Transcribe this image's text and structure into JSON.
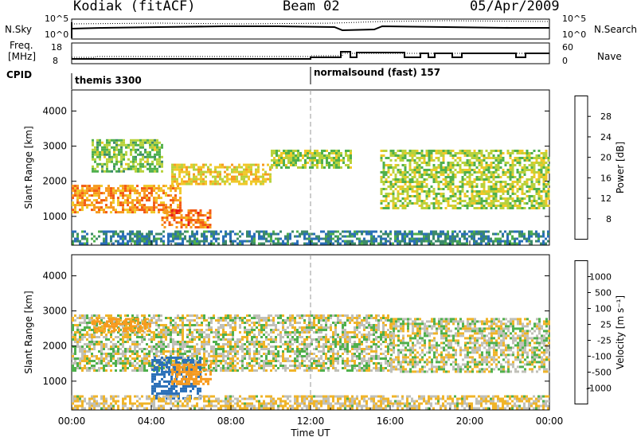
{
  "header": {
    "station": "Kodiak (fitACF)",
    "beam": "Beam 02",
    "date": "05/Apr/2009"
  },
  "panels": {
    "sky": {
      "left_label": "N.Sky",
      "right_label": "N.Search",
      "left_ticks": [
        "10^5",
        "10^0"
      ],
      "right_ticks": [
        "10^5",
        "10^0"
      ]
    },
    "freq": {
      "left_label_1": "Freq.",
      "left_label_2": "[MHz]",
      "right_label": "Nave",
      "left_ticks": [
        "18",
        "8"
      ],
      "right_ticks": [
        "60",
        "0"
      ]
    },
    "cpid": {
      "label": "CPID",
      "mode_1": "themis 3300",
      "mode_2": "normalsound (fast) 157"
    }
  },
  "colors": {
    "power_scale": [
      "#1e3cff",
      "#2a6fb8",
      "#3c8a6a",
      "#4fb04c",
      "#b8d23c",
      "#f0c828",
      "#f79a1e",
      "#f25a14",
      "#e81a1a"
    ],
    "velocity_scale": [
      "#1e3cff",
      "#2a6fb8",
      "#3c8a6a",
      "#4fb04c",
      "#c0c0b8",
      "#f0b428",
      "#f79a1e",
      "#e81a1a"
    ],
    "ground_scatter": "#c0c0b8"
  },
  "chart_data": [
    {
      "type": "heatmap",
      "name": "power",
      "xlabel": "",
      "ylabel": "Slant Range [km]",
      "xlim": [
        "00:00",
        "24:00"
      ],
      "ylim": [
        180,
        4600
      ],
      "yticks": [
        "1000",
        "2000",
        "3000",
        "4000"
      ],
      "colorbar": {
        "label": "Power [dB]",
        "ticks": [
          "8",
          "12",
          "16",
          "20",
          "24",
          "28"
        ],
        "range": [
          4,
          32
        ]
      },
      "regions": [
        {
          "t": [
            0.0,
            5.5
          ],
          "r": [
            1100,
            1900
          ],
          "value": 25
        },
        {
          "t": [
            5.0,
            10.0
          ],
          "r": [
            1900,
            2500
          ],
          "value": 21
        },
        {
          "t": [
            4.5,
            7.0
          ],
          "r": [
            700,
            1200
          ],
          "value": 27
        },
        {
          "t": [
            1.0,
            4.5
          ],
          "r": [
            2300,
            3200
          ],
          "value": 16
        },
        {
          "t": [
            10.0,
            14.0
          ],
          "r": [
            2400,
            2900
          ],
          "value": 17
        },
        {
          "t": [
            15.5,
            24.0
          ],
          "r": [
            1200,
            2900
          ],
          "value": 18
        },
        {
          "t": [
            0.0,
            24.0
          ],
          "r": [
            200,
            600
          ],
          "value": 10
        }
      ]
    },
    {
      "type": "heatmap",
      "name": "velocity",
      "xlabel": "Time UT",
      "ylabel": "Slant Range [km]",
      "xlim": [
        "00:00",
        "24:00"
      ],
      "ylim": [
        180,
        4600
      ],
      "xticks": [
        "00:00",
        "04:00",
        "08:00",
        "12:00",
        "16:00",
        "20:00",
        "00:00"
      ],
      "yticks": [
        "1000",
        "2000",
        "3000",
        "4000"
      ],
      "colorbar": {
        "label": "Velocity [m s⁻¹]",
        "ticks": [
          "1000",
          "500",
          "100",
          "25",
          "-25",
          "-100",
          "-500",
          "-1000"
        ]
      },
      "regions": [
        {
          "t": [
            0.0,
            16.0
          ],
          "r": [
            1300,
            2900
          ],
          "value": 0
        },
        {
          "t": [
            16.0,
            24.0
          ],
          "r": [
            1300,
            2800
          ],
          "value": 0
        },
        {
          "t": [
            1.0,
            4.0
          ],
          "r": [
            2400,
            2800
          ],
          "value": -150
        },
        {
          "t": [
            4.0,
            6.5
          ],
          "r": [
            500,
            1700
          ],
          "value": 200
        },
        {
          "t": [
            5.0,
            7.0
          ],
          "r": [
            900,
            1500
          ],
          "value": -200
        },
        {
          "t": [
            0.0,
            24.0
          ],
          "r": [
            200,
            600
          ],
          "value": -30
        }
      ]
    }
  ]
}
